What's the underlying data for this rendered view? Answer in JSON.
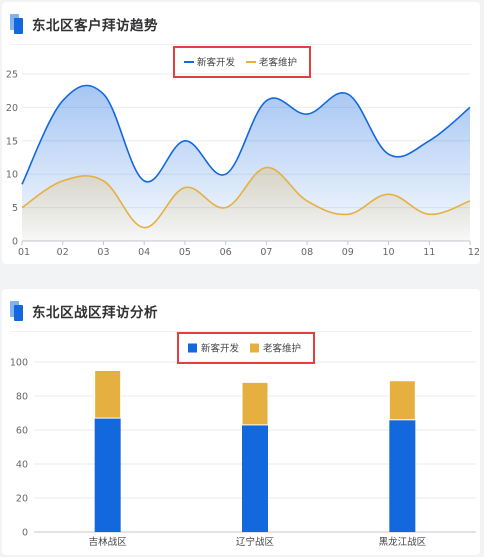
{
  "charts": [
    {
      "title": "东北区客户拜访趋势",
      "chart_data": {
        "type": "line",
        "x": [
          "01",
          "02",
          "03",
          "04",
          "05",
          "06",
          "07",
          "08",
          "09",
          "10",
          "11",
          "12"
        ],
        "series": [
          {
            "name": "新客开发",
            "values": [
              8.5,
              21,
              22,
              9,
              15,
              10,
              21,
              19,
              22,
              13,
              15,
              20
            ],
            "color": "#1368de",
            "area": true
          },
          {
            "name": "老客维护",
            "values": [
              5,
              9,
              9,
              2,
              8,
              5,
              11,
              6,
              4,
              7,
              4,
              6
            ],
            "color": "#e6b041",
            "area": true
          }
        ],
        "ylim": [
          0,
          25
        ],
        "yticks": [
          0,
          5,
          10,
          15,
          20,
          25
        ],
        "grid": true,
        "legend_position": "top-center",
        "smooth": true
      }
    },
    {
      "title": "东北区战区拜访分析",
      "chart_data": {
        "type": "bar",
        "stacked": true,
        "categories": [
          "吉林战区",
          "辽宁战区",
          "黑龙江战区"
        ],
        "series": [
          {
            "name": "新客开发",
            "values": [
              67,
              63,
              66
            ],
            "color": "#1368de"
          },
          {
            "name": "老客维护",
            "values": [
              28,
              25,
              23
            ],
            "color": "#e6b041"
          }
        ],
        "ylim": [
          0,
          100
        ],
        "yticks": [
          0,
          20,
          40,
          60,
          80,
          100
        ],
        "grid": true,
        "legend_position": "top-center"
      }
    }
  ],
  "highlight_color": "#e53e3e"
}
